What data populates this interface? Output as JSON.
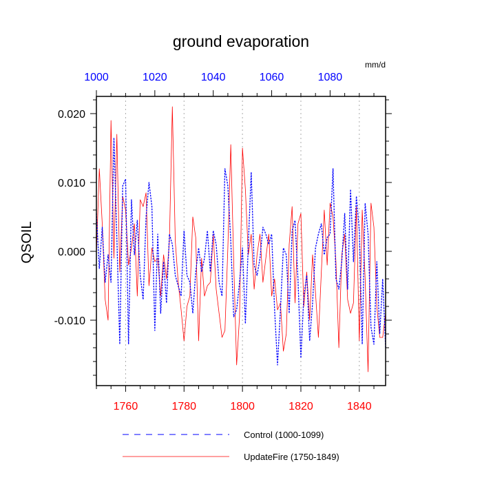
{
  "chart_data": {
    "type": "line",
    "title": "ground evaporation",
    "units": "mm/d",
    "ylabel": "QSOIL",
    "ylim": [
      -0.0195,
      0.0225
    ],
    "yticks": [
      -0.01,
      0.0,
      0.01,
      0.02
    ],
    "ytick_labels": [
      "-0.010",
      "0.000",
      "0.010",
      "0.020"
    ],
    "top_axis": {
      "range": [
        1000,
        1099
      ],
      "ticks": [
        1000,
        1020,
        1040,
        1060,
        1080
      ],
      "color": "#0000ff"
    },
    "bottom_axis": {
      "range": [
        1750,
        1849
      ],
      "ticks": [
        1760,
        1780,
        1800,
        1820,
        1840
      ],
      "color": "#ff0000"
    },
    "grid": "vertical dotted at bottom-axis ticks",
    "legend_position": "bottom",
    "series": [
      {
        "name": "Control (1000-1099)",
        "color": "#0000ff",
        "style": "dashed",
        "x_start": 1000,
        "values": [
          0.0055,
          -0.0025,
          0.0035,
          -0.0045,
          -0.0005,
          -0.0045,
          0.0165,
          0.002,
          -0.0135,
          0.0095,
          0.0105,
          -0.0135,
          0.0075,
          -0.0005,
          0.0045,
          -0.0035,
          -0.007,
          0.005,
          0.01,
          0.0065,
          -0.0115,
          0.0025,
          -0.009,
          -0.0015,
          -0.0075,
          0.0025,
          0.001,
          -0.0035,
          -0.005,
          -0.0065,
          0.003,
          -0.0035,
          -0.0045,
          -0.009,
          -0.003,
          0.0005,
          -0.003,
          -0.001,
          0.003,
          -0.003,
          0.003,
          0.001,
          -0.0045,
          -0.0065,
          0.012,
          0.0095,
          0.0015,
          -0.0095,
          -0.0085,
          -0.0045,
          0.0005,
          -0.0105,
          0.001,
          0.0115,
          -0.002,
          -0.0035,
          -0.001,
          0.0035,
          0.0025,
          0.001,
          0.0025,
          -0.0085,
          -0.0165,
          -0.0085,
          0.0005,
          -0.0005,
          -0.009,
          0.003,
          0.0045,
          -0.004,
          -0.0155,
          -0.0065,
          -0.0035,
          -0.013,
          -0.0075,
          0.0005,
          0.0025,
          0.004,
          -0.0005,
          0.002,
          0.0025,
          0.012,
          -0.004,
          -0.0055,
          -0.0015,
          0.0055,
          -0.0055,
          0.009,
          -0.0015,
          0.008,
          0.003,
          -0.0135,
          0.007,
          0.0025,
          -0.011,
          -0.0135,
          -0.0015,
          -0.012,
          -0.004,
          -0.014
        ]
      },
      {
        "name": "UpdateFire (1750-1849)",
        "color": "#ff0000",
        "style": "solid",
        "x_start": 1750,
        "values": [
          -0.0005,
          0.012,
          0.004,
          -0.007,
          -0.01,
          0.019,
          -0.001,
          0.017,
          -0.003,
          0.008,
          0.006,
          -0.002,
          0.0005,
          0.004,
          -0.0065,
          0.0075,
          0.0065,
          0.0085,
          -0.005,
          0.0005,
          -0.0015,
          -0.001,
          -0.0065,
          -0.0005,
          -0.004,
          0.0015,
          0.021,
          0.0015,
          -0.0045,
          -0.0085,
          -0.013,
          -0.008,
          -0.0065,
          0.005,
          0.002,
          -0.013,
          -0.001,
          -0.0065,
          -0.005,
          -0.0045,
          0.0025,
          -0.0055,
          -0.009,
          -0.0125,
          -0.0115,
          0.0005,
          0.0155,
          -0.0015,
          -0.0165,
          -0.0095,
          0.015,
          0.009,
          -0.0005,
          0.0025,
          -0.0055,
          -0.0005,
          0.0025,
          -0.0045,
          -0.001,
          0.0025,
          -0.0065,
          -0.004,
          -0.0085,
          -0.0075,
          -0.0145,
          -0.012,
          0.001,
          0.0065,
          -0.0075,
          0.004,
          0.0055,
          -0.008,
          -0.003,
          -0.01,
          -0.0005,
          -0.006,
          -0.0125,
          -0.003,
          0.006,
          -0.002,
          0.007,
          0.005,
          -0.0015,
          -0.014,
          -0.0005,
          0.0025,
          -0.007,
          -0.009,
          -0.0075,
          0.0065,
          -0.013,
          0.006,
          -0.004,
          -0.0175,
          0.007,
          0.0035,
          -0.008,
          -0.0125,
          -0.0125,
          -0.009
        ]
      }
    ]
  }
}
